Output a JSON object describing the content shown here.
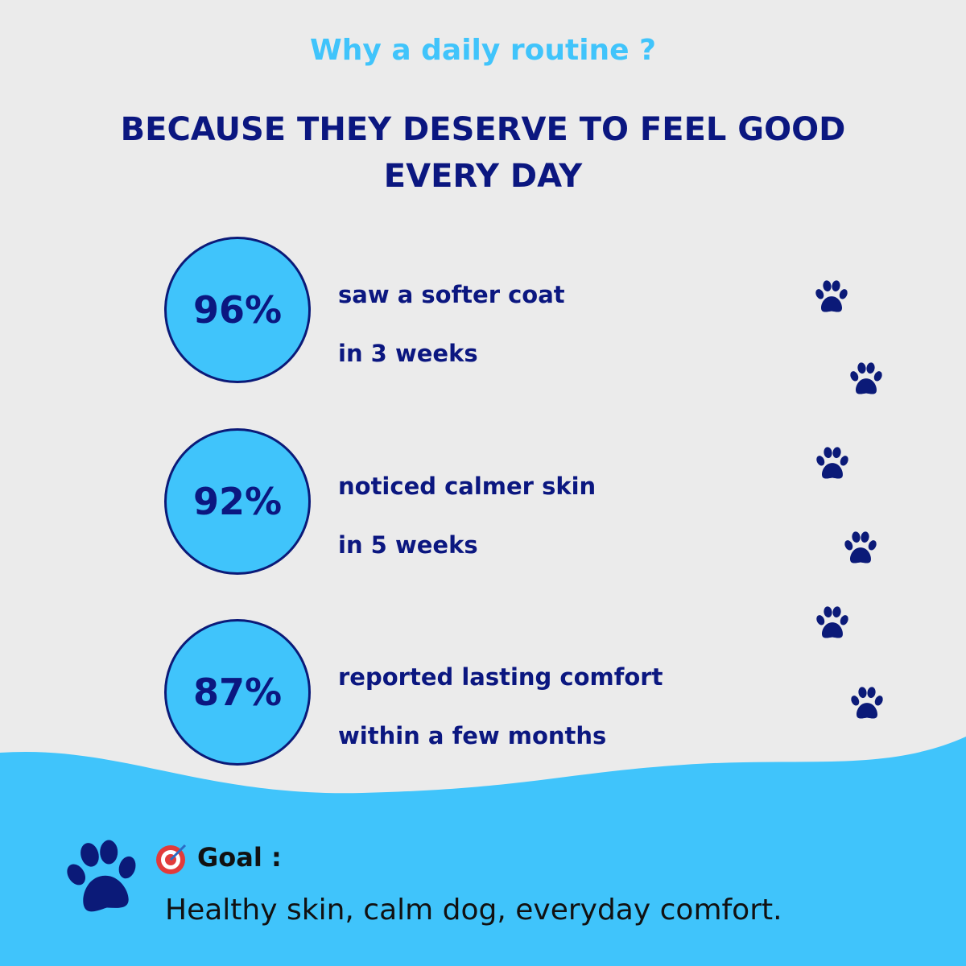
{
  "header": {
    "kicker": "Why a daily routine ?",
    "title": "BECAUSE THEY DESERVE TO FEEL GOOD EVERY DAY"
  },
  "stats": [
    {
      "value": "96%",
      "line1": "saw a softer coat",
      "line2": "in 3 weeks"
    },
    {
      "value": "92%",
      "line1": "noticed calmer skin",
      "line2": "in 5 weeks"
    },
    {
      "value": "87%",
      "line1": "reported lasting comfort",
      "line2": "within a few months"
    }
  ],
  "goal": {
    "label": "Goal :",
    "text": "Healthy skin, calm dog, everyday comfort."
  }
}
